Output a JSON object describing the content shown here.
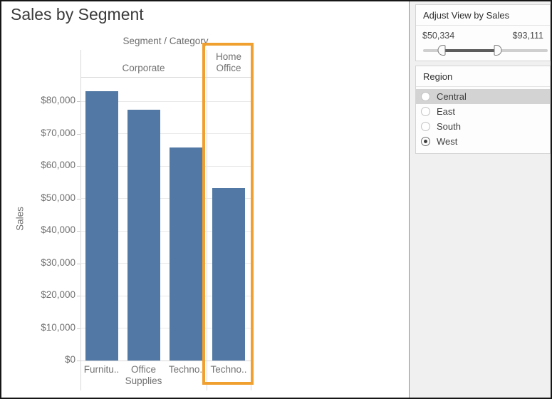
{
  "header": {
    "title": "Sales by Segment"
  },
  "chart_data": {
    "type": "bar",
    "title": "Segment / Category",
    "ylabel": "Sales",
    "ylim": [
      0,
      87500
    ],
    "grid": true,
    "legend_position": "none",
    "yticks": [
      {
        "value": 0,
        "label": "$0"
      },
      {
        "value": 10000,
        "label": "$10,000"
      },
      {
        "value": 20000,
        "label": "$20,000"
      },
      {
        "value": 30000,
        "label": "$30,000"
      },
      {
        "value": 40000,
        "label": "$40,000"
      },
      {
        "value": 50000,
        "label": "$50,000"
      },
      {
        "value": 60000,
        "label": "$60,000"
      },
      {
        "value": 70000,
        "label": "$70,000"
      },
      {
        "value": 80000,
        "label": "$80,000"
      }
    ],
    "segments": [
      {
        "name": "Corporate",
        "highlighted": false,
        "bars": [
          {
            "category": "Furnitu..",
            "value": 83100
          },
          {
            "category": "Office Supplies",
            "value": 77500
          },
          {
            "category": "Techno.",
            "value": 65700
          }
        ]
      },
      {
        "name": "Home Office",
        "highlighted": true,
        "bars": [
          {
            "category": "Techno..",
            "value": 53200
          }
        ]
      }
    ],
    "colors": {
      "bar": "#5279a5",
      "highlight_box": "#f0a02f"
    }
  },
  "filter_panel": {
    "sales_filter": {
      "title": "Adjust View by Sales",
      "min_label": "$50,334",
      "max_label": "$93,111",
      "slider": {
        "lower_pct": 15,
        "upper_pct": 60
      }
    },
    "region_filter": {
      "title": "Region",
      "options": [
        {
          "label": "Central",
          "selected": false,
          "highlighted": true
        },
        {
          "label": "East",
          "selected": false,
          "highlighted": false
        },
        {
          "label": "South",
          "selected": false,
          "highlighted": false
        },
        {
          "label": "West",
          "selected": true,
          "highlighted": false
        }
      ]
    }
  }
}
